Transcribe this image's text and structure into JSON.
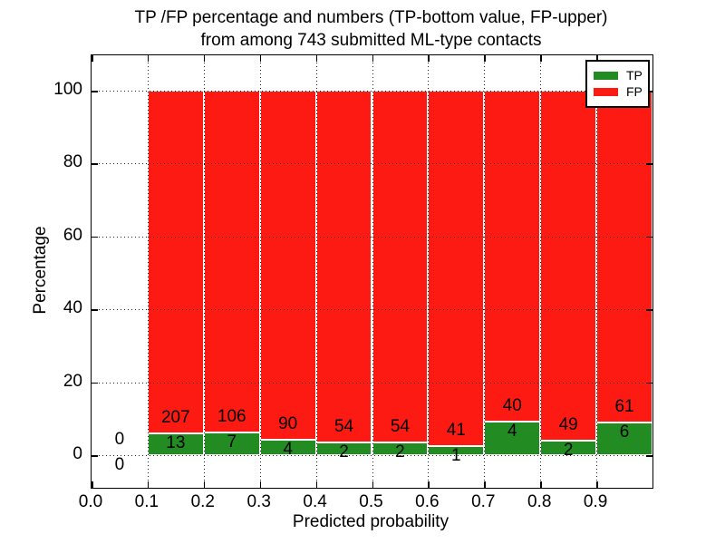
{
  "titles": {
    "line1": "TP /FP percentage and numbers (TP-bottom value, FP-upper)",
    "line2": "from among 743 submitted ML-type contacts"
  },
  "chart_data": {
    "type": "bar",
    "stacked": true,
    "normalized_to_percent": true,
    "title": "TP /FP percentage and numbers (TP-bottom value, FP-upper) from among 743 submitted ML-type contacts",
    "total_contacts": 743,
    "xlabel": "Predicted probability",
    "ylabel": "Percentage",
    "x_tick_labels": [
      "0.0",
      "0.1",
      "0.2",
      "0.3",
      "0.4",
      "0.5",
      "0.6",
      "0.7",
      "0.8",
      "0.9"
    ],
    "y_tick_labels": [
      "0",
      "20",
      "40",
      "60",
      "80",
      "100"
    ],
    "y_tick_values": [
      0,
      20,
      40,
      60,
      80,
      100
    ],
    "xlim": [
      0.0,
      1.0
    ],
    "ylim": [
      -9,
      110
    ],
    "grid": "dotted, drawn above bars",
    "legend_position": "upper right",
    "categories": [
      "0.0-0.1",
      "0.1-0.2",
      "0.2-0.3",
      "0.3-0.4",
      "0.4-0.5",
      "0.5-0.6",
      "0.6-0.7",
      "0.7-0.8",
      "0.8-0.9",
      "0.9-1.0"
    ],
    "bin_left_edges": [
      0.0,
      0.1,
      0.2,
      0.3,
      0.4,
      0.5,
      0.6,
      0.7,
      0.8,
      0.9
    ],
    "series": [
      {
        "name": "TP",
        "position": "bottom",
        "color": "#228b22",
        "counts": [
          0,
          13,
          7,
          4,
          2,
          2,
          1,
          4,
          2,
          6
        ]
      },
      {
        "name": "FP",
        "position": "top",
        "color": "#fc1a12",
        "counts": [
          0,
          207,
          106,
          90,
          54,
          54,
          41,
          40,
          49,
          61
        ]
      }
    ],
    "tp_percent_by_bin": [
      0,
      5.91,
      6.19,
      4.26,
      3.57,
      3.57,
      2.38,
      9.09,
      3.92,
      8.96
    ],
    "bar_value_labels": "TP count below segment boundary, FP count above segment boundary"
  }
}
